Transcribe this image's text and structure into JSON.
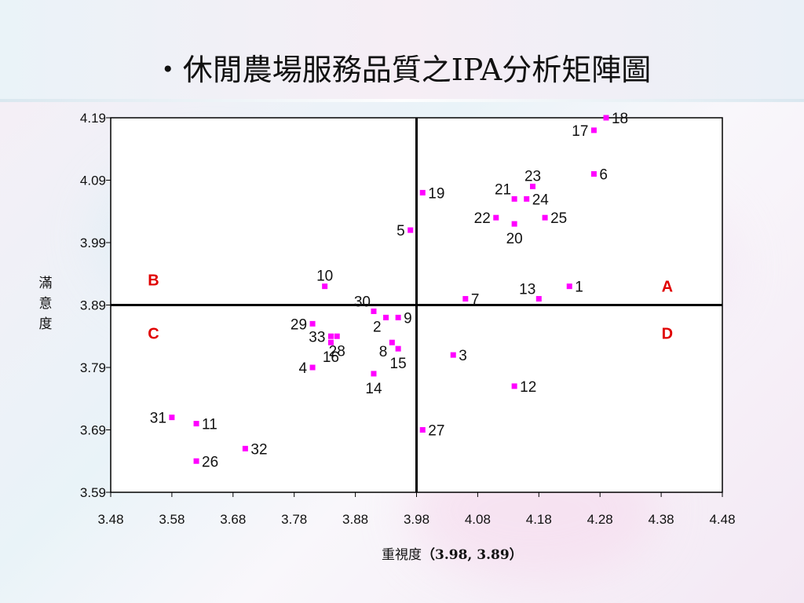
{
  "slide": {
    "title": "・休閒農場服務品質之IPA分析矩陣圖"
  },
  "chart_data": {
    "type": "scatter",
    "title": "",
    "xlabel": "重視度",
    "xlabel_note": "（3.98, 3.89）",
    "ylabel": "滿意度",
    "xlim": [
      3.48,
      4.48
    ],
    "ylim": [
      3.59,
      4.19
    ],
    "x_ticks": [
      "3.48",
      "3.58",
      "3.68",
      "3.78",
      "3.88",
      "3.98",
      "4.08",
      "4.18",
      "4.28",
      "4.38",
      "4.48"
    ],
    "y_ticks": [
      "4.19",
      "4.09",
      "3.99",
      "3.89",
      "3.79",
      "3.69",
      "3.59"
    ],
    "divider": {
      "x": 3.98,
      "y": 3.89
    },
    "marker_color": "#ff00ff",
    "quadrant_color": "#e00000",
    "quadrants": [
      {
        "label": "A",
        "x": 4.39,
        "y": 3.92
      },
      {
        "label": "B",
        "x": 3.55,
        "y": 3.93
      },
      {
        "label": "C",
        "x": 3.55,
        "y": 3.845
      },
      {
        "label": "D",
        "x": 4.39,
        "y": 3.845
      }
    ],
    "points": [
      {
        "label": "1",
        "x": 4.23,
        "y": 3.92,
        "pos": "r"
      },
      {
        "label": "2",
        "x": 3.93,
        "y": 3.87,
        "pos": "bl"
      },
      {
        "label": "3",
        "x": 4.04,
        "y": 3.81,
        "pos": "r"
      },
      {
        "label": "4",
        "x": 3.81,
        "y": 3.79,
        "pos": "l"
      },
      {
        "label": "5",
        "x": 3.97,
        "y": 4.01,
        "pos": "l"
      },
      {
        "label": "6",
        "x": 4.27,
        "y": 4.1,
        "pos": "r"
      },
      {
        "label": "7",
        "x": 4.06,
        "y": 3.9,
        "pos": "r"
      },
      {
        "label": "8",
        "x": 3.94,
        "y": 3.83,
        "pos": "bl"
      },
      {
        "label": "9",
        "x": 3.95,
        "y": 3.87,
        "pos": "r"
      },
      {
        "label": "10",
        "x": 3.83,
        "y": 3.92,
        "pos": "t"
      },
      {
        "label": "11",
        "x": 3.62,
        "y": 3.7,
        "pos": "r"
      },
      {
        "label": "12",
        "x": 4.14,
        "y": 3.76,
        "pos": "r"
      },
      {
        "label": "13",
        "x": 4.18,
        "y": 3.9,
        "pos": "tl"
      },
      {
        "label": "14",
        "x": 3.91,
        "y": 3.78,
        "pos": "b"
      },
      {
        "label": "15",
        "x": 3.95,
        "y": 3.82,
        "pos": "b"
      },
      {
        "label": "16",
        "x": 3.84,
        "y": 3.83,
        "pos": "b"
      },
      {
        "label": "17",
        "x": 4.27,
        "y": 4.17,
        "pos": "l"
      },
      {
        "label": "18",
        "x": 4.29,
        "y": 4.19,
        "pos": "r"
      },
      {
        "label": "19",
        "x": 3.99,
        "y": 4.07,
        "pos": "r"
      },
      {
        "label": "20",
        "x": 4.14,
        "y": 4.02,
        "pos": "b"
      },
      {
        "label": "21",
        "x": 4.14,
        "y": 4.06,
        "pos": "tl"
      },
      {
        "label": "22",
        "x": 4.11,
        "y": 4.03,
        "pos": "l"
      },
      {
        "label": "23",
        "x": 4.17,
        "y": 4.08,
        "pos": "t"
      },
      {
        "label": "24",
        "x": 4.16,
        "y": 4.06,
        "pos": "r"
      },
      {
        "label": "25",
        "x": 4.19,
        "y": 4.03,
        "pos": "r"
      },
      {
        "label": "26",
        "x": 3.62,
        "y": 3.64,
        "pos": "r"
      },
      {
        "label": "27",
        "x": 3.99,
        "y": 3.69,
        "pos": "r"
      },
      {
        "label": "28",
        "x": 3.85,
        "y": 3.84,
        "pos": "b"
      },
      {
        "label": "29",
        "x": 3.81,
        "y": 3.86,
        "pos": "l"
      },
      {
        "label": "30",
        "x": 3.91,
        "y": 3.88,
        "pos": "tl"
      },
      {
        "label": "31",
        "x": 3.58,
        "y": 3.71,
        "pos": "l"
      },
      {
        "label": "32",
        "x": 3.7,
        "y": 3.66,
        "pos": "r"
      },
      {
        "label": "33",
        "x": 3.84,
        "y": 3.84,
        "pos": "l"
      }
    ]
  }
}
